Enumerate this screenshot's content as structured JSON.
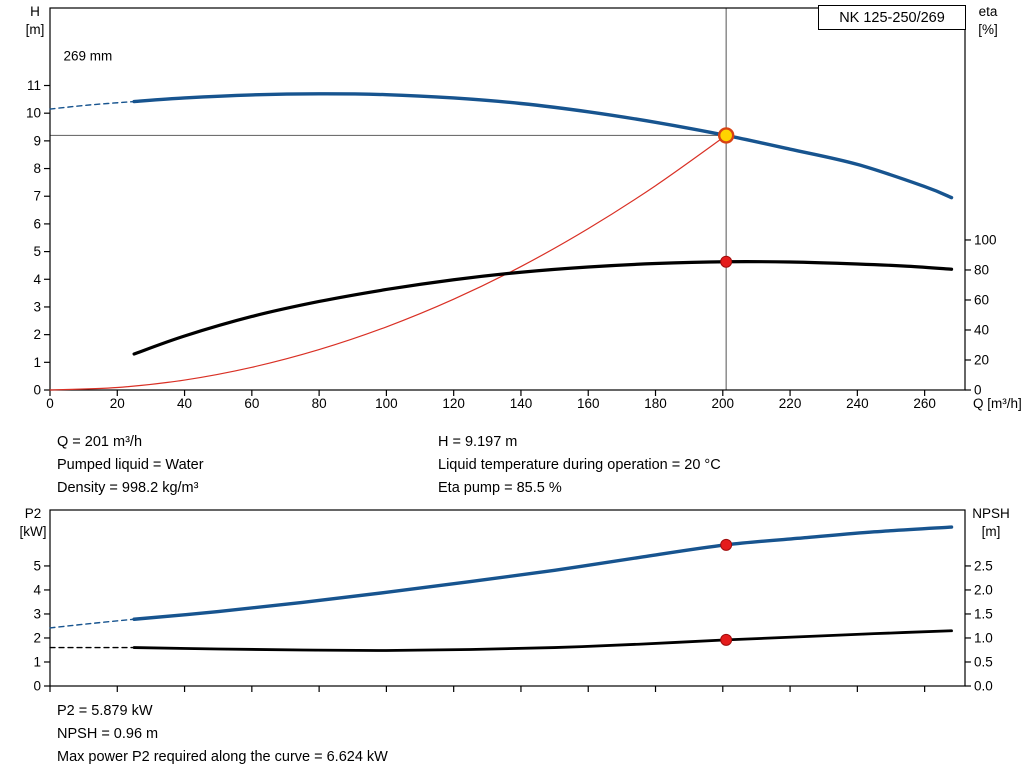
{
  "pump_model": "NK 125-250/269",
  "colors": {
    "curve_blue": "#17548f",
    "curve_black": "#000000",
    "system_red": "#d93025",
    "marker_red": "#e51c1c",
    "marker_red_edge": "#9e0b0b",
    "duty_yellow": "#ffd400",
    "duty_ring": "#d84315",
    "guide_gray": "#707070"
  },
  "info_top": {
    "left": [
      "Q = 201 m³/h",
      "Pumped liquid = Water",
      "Density = 998.2 kg/m³"
    ],
    "right": [
      "H = 9.197 m",
      "Liquid temperature during operation = 20 °C",
      "Eta pump = 85.5 %"
    ]
  },
  "info_bottom": [
    "P2 = 5.879 kW",
    "NPSH = 0.96 m",
    "Max power P2 required along the curve = 6.624 kW"
  ],
  "chart_data": [
    {
      "type": "line",
      "title": "NK 125-250/269",
      "xlabel": "Q [m³/h]",
      "ylabel_left": [
        "H",
        "[m]"
      ],
      "ylabel_right": [
        "eta",
        "[%]"
      ],
      "xlim": [
        0,
        272
      ],
      "ylim_left": [
        0,
        13.8
      ],
      "grid": false,
      "legend": false,
      "x_ticks": [
        0,
        20,
        40,
        60,
        80,
        100,
        120,
        140,
        160,
        180,
        200,
        220,
        240,
        260
      ],
      "x_tick_labels_visible": true,
      "y_ticks_left": [
        0,
        1,
        2,
        3,
        4,
        5,
        6,
        7,
        8,
        9,
        10,
        11
      ],
      "y_axis_right": {
        "ticks": [
          0,
          20,
          40,
          60,
          80,
          100
        ],
        "labels": [
          "0",
          "20",
          "40",
          "60",
          "80",
          "100"
        ],
        "scale_to_left": 0.0542
      },
      "annotation": {
        "text": "269 mm",
        "x": 4,
        "y": 11.9
      },
      "duty_lines": {
        "q": 201,
        "h": 9.197
      },
      "series": [
        {
          "name": "system-curve",
          "color": "#d93025",
          "width": 1.2,
          "axis": "left",
          "points": [
            [
              0,
              0
            ],
            [
              20,
              0.09
            ],
            [
              40,
              0.36
            ],
            [
              60,
              0.82
            ],
            [
              80,
              1.46
            ],
            [
              100,
              2.28
            ],
            [
              120,
              3.28
            ],
            [
              140,
              4.46
            ],
            [
              160,
              5.83
            ],
            [
              180,
              7.38
            ],
            [
              201,
              9.197
            ]
          ]
        },
        {
          "name": "head-curve-extension",
          "color": "#17548f",
          "width": 1.4,
          "dash": "5 4",
          "axis": "left",
          "points": [
            [
              0,
              10.15
            ],
            [
              12,
              10.3
            ],
            [
              25,
              10.42
            ]
          ]
        },
        {
          "name": "head-curve-269mm",
          "color": "#17548f",
          "width": 3.4,
          "axis": "left",
          "points": [
            [
              25,
              10.42
            ],
            [
              40,
              10.55
            ],
            [
              60,
              10.66
            ],
            [
              80,
              10.7
            ],
            [
              100,
              10.67
            ],
            [
              120,
              10.55
            ],
            [
              140,
              10.35
            ],
            [
              160,
              10.05
            ],
            [
              180,
              9.67
            ],
            [
              201,
              9.197
            ],
            [
              220,
              8.7
            ],
            [
              240,
              8.15
            ],
            [
              260,
              7.35
            ],
            [
              268,
              6.95
            ]
          ]
        },
        {
          "name": "efficiency-curve",
          "color": "#000000",
          "width": 3.2,
          "axis": "right",
          "points": [
            [
              25,
              24
            ],
            [
              40,
              36
            ],
            [
              60,
              49
            ],
            [
              80,
              59
            ],
            [
              100,
              67
            ],
            [
              120,
              73.5
            ],
            [
              140,
              78.5
            ],
            [
              160,
              82
            ],
            [
              180,
              84.3
            ],
            [
              201,
              85.5
            ],
            [
              220,
              85.3
            ],
            [
              240,
              84
            ],
            [
              255,
              82.5
            ],
            [
              268,
              80.5
            ]
          ]
        }
      ],
      "markers": [
        {
          "x": 201,
          "y": 85.5,
          "axis": "right",
          "style": "dot",
          "name": "efficiency-operating-point"
        },
        {
          "x": 201,
          "y": 9.197,
          "axis": "left",
          "style": "duty",
          "name": "duty-point"
        }
      ]
    },
    {
      "type": "line",
      "title": "",
      "xlabel": "",
      "ylabel_left": [
        "P2",
        "[kW]"
      ],
      "ylabel_right": [
        "NPSH",
        "[m]"
      ],
      "xlim": [
        0,
        272
      ],
      "ylim_left": [
        0,
        7.33
      ],
      "grid": false,
      "legend": false,
      "x_ticks": [
        0,
        20,
        40,
        60,
        80,
        100,
        120,
        140,
        160,
        180,
        200,
        220,
        240,
        260
      ],
      "x_tick_labels_visible": false,
      "y_ticks_left": [
        0,
        1,
        2,
        3,
        4,
        5
      ],
      "y_axis_right": {
        "ticks": [
          0,
          0.5,
          1,
          1.5,
          2,
          2.5
        ],
        "labels": [
          "0.0",
          "0.5",
          "1.0",
          "1.5",
          "2.0",
          "2.5"
        ],
        "scale_to_left": 2.0
      },
      "series": [
        {
          "name": "power-curve-extension",
          "color": "#17548f",
          "width": 1.4,
          "dash": "5 4",
          "axis": "left",
          "points": [
            [
              0,
              2.42
            ],
            [
              12,
              2.6
            ],
            [
              25,
              2.78
            ]
          ]
        },
        {
          "name": "power-curve",
          "color": "#17548f",
          "width": 3.4,
          "axis": "left",
          "points": [
            [
              25,
              2.78
            ],
            [
              50,
              3.1
            ],
            [
              75,
              3.48
            ],
            [
              100,
              3.9
            ],
            [
              125,
              4.35
            ],
            [
              150,
              4.82
            ],
            [
              175,
              5.35
            ],
            [
              201,
              5.879
            ],
            [
              225,
              6.18
            ],
            [
              245,
              6.42
            ],
            [
              268,
              6.62
            ]
          ]
        },
        {
          "name": "npsh-curve-extension",
          "color": "#000000",
          "width": 1.3,
          "dash": "5 4",
          "axis": "right",
          "points": [
            [
              0,
              0.8
            ],
            [
              25,
              0.8
            ]
          ]
        },
        {
          "name": "npsh-curve",
          "color": "#000000",
          "width": 2.8,
          "axis": "right",
          "points": [
            [
              25,
              0.8
            ],
            [
              50,
              0.77
            ],
            [
              75,
              0.75
            ],
            [
              100,
              0.74
            ],
            [
              125,
              0.76
            ],
            [
              150,
              0.8
            ],
            [
              175,
              0.87
            ],
            [
              201,
              0.96
            ],
            [
              225,
              1.03
            ],
            [
              245,
              1.09
            ],
            [
              268,
              1.15
            ]
          ]
        }
      ],
      "markers": [
        {
          "x": 201,
          "y": 5.879,
          "axis": "left",
          "style": "dot",
          "name": "power-operating-point"
        },
        {
          "x": 201,
          "y": 0.96,
          "axis": "right",
          "style": "dot",
          "name": "npsh-operating-point"
        }
      ]
    }
  ]
}
